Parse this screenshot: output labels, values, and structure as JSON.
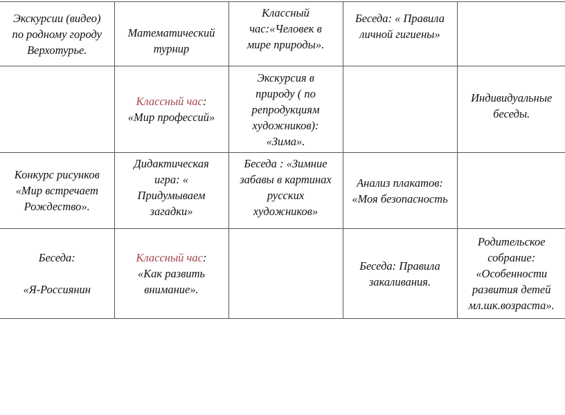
{
  "table": {
    "rows": [
      {
        "cells": [
          "Экскурсии (видео)\nпо родному городу\nВерхотурье.",
          "Математический\nтурнир",
          "Классный\nчас:«Человек в\nмире природы».",
          "Беседа: « Правила\nличной гигиены»",
          ""
        ]
      },
      {
        "cells": [
          "",
          {
            "highlight": "Классный час",
            "rest": ":\n«Мир профессий»"
          },
          "Экскурсия в\nприроду ( по\nрепродукциям\nхудожников):\n«Зима».",
          "",
          "Индивидуальные\nбеседы."
        ]
      },
      {
        "cells": [
          "Конкурс рисунков\n«Мир встречает\nРождество».",
          "Дидактическая\nигра: «\nПридумываем\nзагадки»",
          "Беседа :  «Зимние\nзабавы в картинах\nрусских\nхудожников»",
          "Анализ плакатов:\n«Моя безопасность",
          ""
        ]
      },
      {
        "cells": [
          "Беседа:\n\n«Я-Россиянин",
          {
            "highlight": "Классный час",
            "rest": ":\n«Как развить\nвнимание»."
          },
          "",
          "Беседа: Правила\nзакаливания.",
          "Родительское\nсобрание:\n«Особенности\nразвития детей\nмл.шк.возраста»."
        ]
      }
    ],
    "highlight_color": "#a3454a"
  }
}
